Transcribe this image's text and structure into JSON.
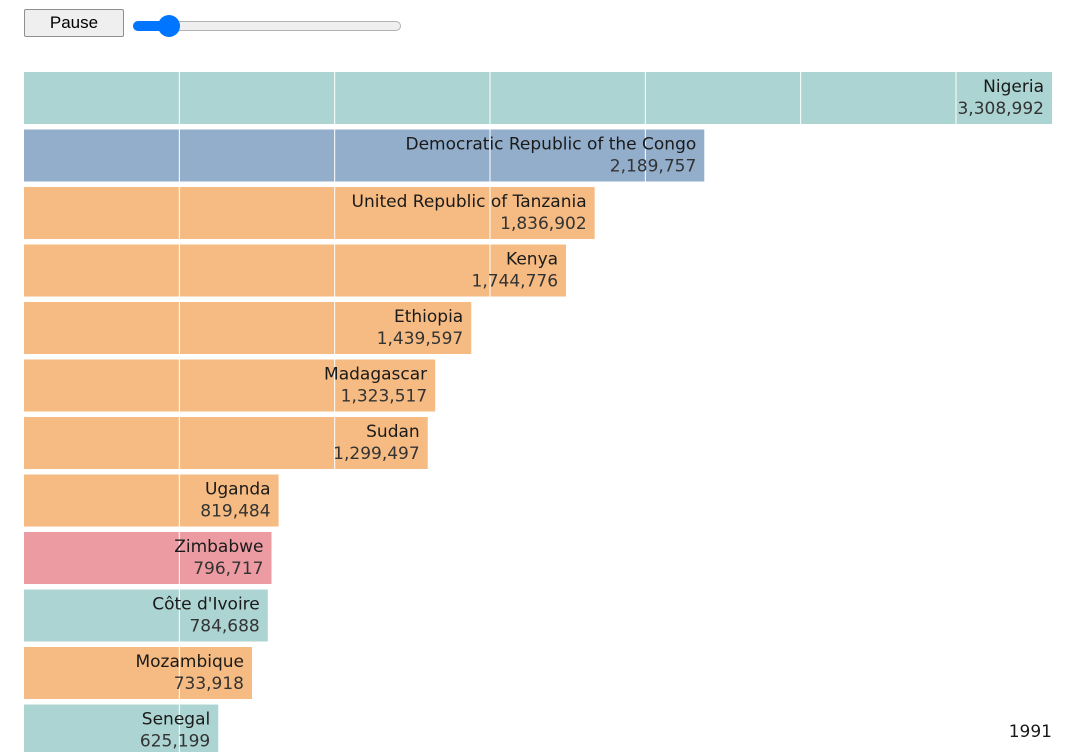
{
  "controls": {
    "pause_label": "Pause",
    "slider_fraction": 0.1
  },
  "colors": {
    "teal": "#acd4d2",
    "blue": "#93aecb",
    "orange": "#f5bb82",
    "red": "#ec9ba2",
    "gridline": "#ffffff"
  },
  "chart_data": {
    "type": "bar",
    "orientation": "horizontal",
    "year": "1991",
    "xlim": [
      0,
      3308992
    ],
    "grid_step": 500000,
    "bars": [
      {
        "name": "Nigeria",
        "value": 3308992,
        "value_label": "3,308,992",
        "color": "teal"
      },
      {
        "name": "Democratic Republic of the Congo",
        "value": 2189757,
        "value_label": "2,189,757",
        "color": "blue"
      },
      {
        "name": "United Republic of Tanzania",
        "value": 1836902,
        "value_label": "1,836,902",
        "color": "orange"
      },
      {
        "name": "Kenya",
        "value": 1744776,
        "value_label": "1,744,776",
        "color": "orange"
      },
      {
        "name": "Ethiopia",
        "value": 1439597,
        "value_label": "1,439,597",
        "color": "orange"
      },
      {
        "name": "Madagascar",
        "value": 1323517,
        "value_label": "1,323,517",
        "color": "orange"
      },
      {
        "name": "Sudan",
        "value": 1299497,
        "value_label": "1,299,497",
        "color": "orange"
      },
      {
        "name": "Uganda",
        "value": 819484,
        "value_label": "819,484",
        "color": "orange"
      },
      {
        "name": "Zimbabwe",
        "value": 796717,
        "value_label": "796,717",
        "color": "red"
      },
      {
        "name": "Côte d'Ivoire",
        "value": 784688,
        "value_label": "784,688",
        "color": "teal"
      },
      {
        "name": "Mozambique",
        "value": 733918,
        "value_label": "733,918",
        "color": "orange"
      },
      {
        "name": "Senegal",
        "value": 625199,
        "value_label": "625,199",
        "color": "teal"
      }
    ]
  }
}
